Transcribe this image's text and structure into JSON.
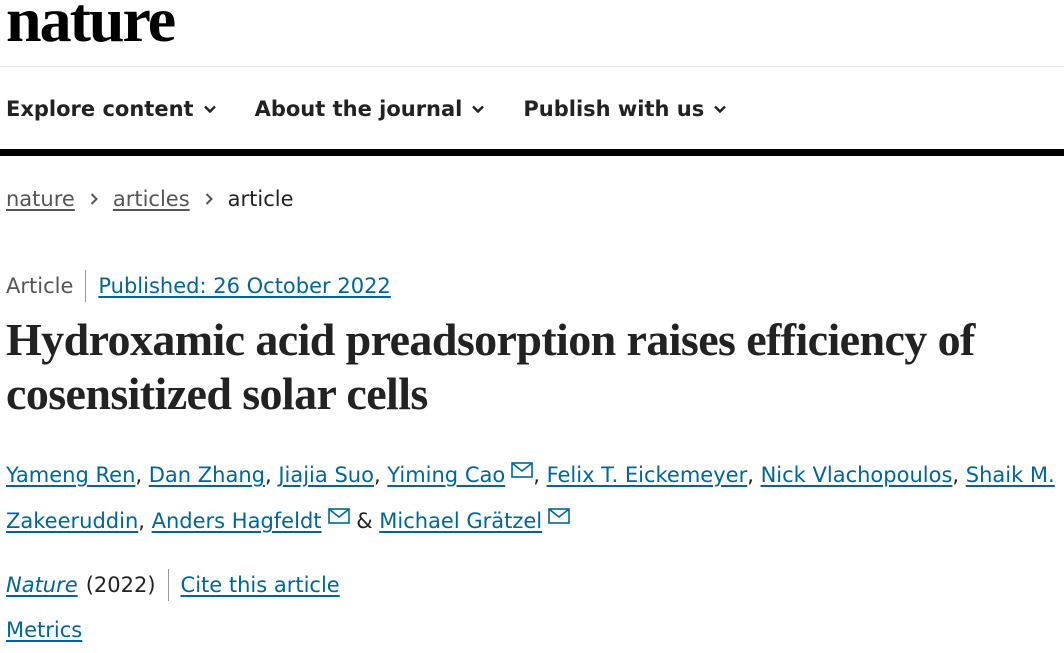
{
  "header": {
    "logo_text": "nature"
  },
  "nav": {
    "items": [
      {
        "label": "Explore content"
      },
      {
        "label": "About the journal"
      },
      {
        "label": "Publish with us"
      }
    ]
  },
  "breadcrumb": {
    "items": [
      "nature",
      "articles",
      "article"
    ]
  },
  "article": {
    "type": "Article",
    "published": "Published: 26 October 2022",
    "title": "Hydroxamic acid preadsorption raises efficiency of cosensitized solar cells",
    "authors": [
      {
        "name": "Yameng Ren",
        "email": false
      },
      {
        "name": "Dan Zhang",
        "email": false
      },
      {
        "name": "Jiajia Suo",
        "email": false
      },
      {
        "name": "Yiming Cao",
        "email": true
      },
      {
        "name": "Felix T. Eickemeyer",
        "email": false
      },
      {
        "name": "Nick Vlachopoulos",
        "email": false
      },
      {
        "name": "Shaik M. Zakeeruddin",
        "email": false
      },
      {
        "name": "Anders Hagfeldt",
        "email": true
      },
      {
        "name": "Michael Grätzel",
        "email": true
      }
    ],
    "author_separator": ", ",
    "author_last_separator": " & ",
    "journal": "Nature",
    "year": "(2022)",
    "cite_label": "Cite this article",
    "metrics_label": "Metrics"
  },
  "colors": {
    "link": "#006699",
    "text": "#222222",
    "muted": "#555555",
    "rule": "#000000"
  },
  "icons": {
    "nav_chevron": "chevron-down-icon",
    "breadcrumb_separator": "chevron-right-icon",
    "author_email": "envelope-icon"
  }
}
